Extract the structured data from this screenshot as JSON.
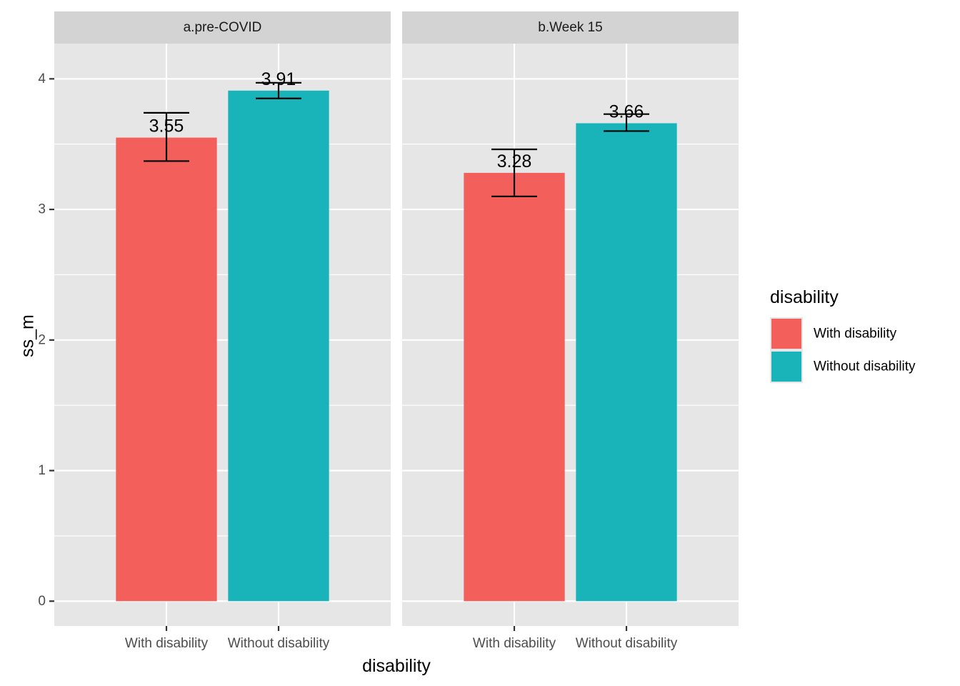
{
  "chart_data": {
    "type": "bar",
    "facets": [
      "a.pre-COVID",
      "b.Week 15"
    ],
    "categories": [
      "With disability",
      "Without disability"
    ],
    "ylabel": "ss_m",
    "xlabel": "disability",
    "ylim": [
      -0.19,
      4.27
    ],
    "yticks": [
      0,
      1,
      2,
      3,
      4
    ],
    "legend": {
      "title": "disability",
      "position": "right",
      "entries": [
        "With disability",
        "Without disability"
      ]
    },
    "colors": {
      "With disability": "#f35f5b",
      "Without disability": "#19b4b9",
      "panel_bg": "#e6e6e6",
      "strip_bg": "#d3d3d3",
      "grid": "#ffffff"
    },
    "panels": [
      {
        "facet": "a.pre-COVID",
        "bars": [
          {
            "category": "With disability",
            "value": 3.55,
            "label": "3.55",
            "err_low": 3.37,
            "err_high": 3.74
          },
          {
            "category": "Without disability",
            "value": 3.91,
            "label": "3.91",
            "err_low": 3.85,
            "err_high": 3.97
          }
        ]
      },
      {
        "facet": "b.Week 15",
        "bars": [
          {
            "category": "With disability",
            "value": 3.28,
            "label": "3.28",
            "err_low": 3.1,
            "err_high": 3.46
          },
          {
            "category": "Without disability",
            "value": 3.66,
            "label": "3.66",
            "err_low": 3.6,
            "err_high": 3.73
          }
        ]
      }
    ]
  }
}
